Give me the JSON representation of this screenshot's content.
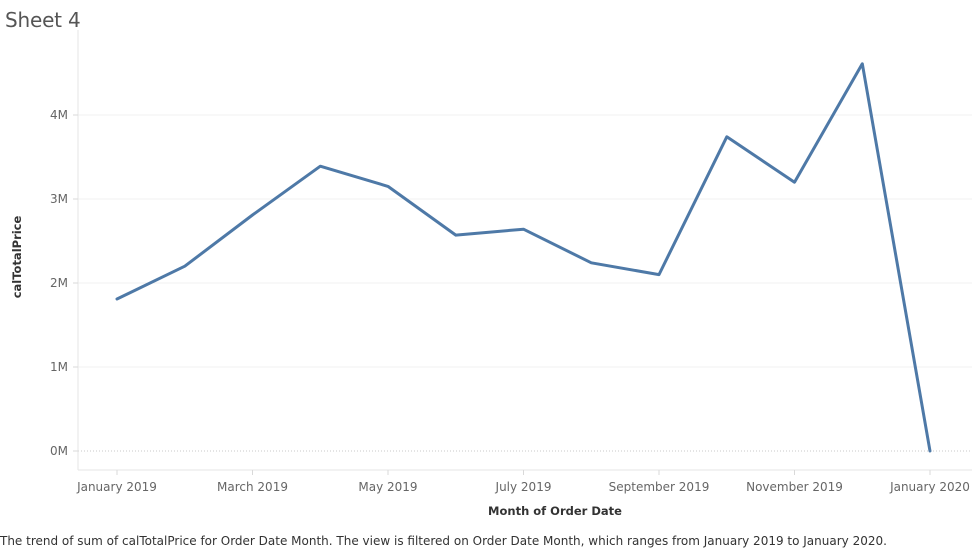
{
  "sheet": {
    "title": "Sheet 4",
    "caption": "The trend of sum of calTotalPrice for Order Date Month. The view is filtered on Order Date Month, which ranges from January 2019 to January 2020."
  },
  "chart_data": {
    "type": "line",
    "xlabel": "Month of Order Date",
    "ylabel": "calTotalPrice",
    "x": [
      "January 2019",
      "February 2019",
      "March 2019",
      "April 2019",
      "May 2019",
      "June 2019",
      "July 2019",
      "August 2019",
      "September 2019",
      "October 2019",
      "November 2019",
      "December 2019",
      "January 2020"
    ],
    "x_tick_labels": [
      "January 2019",
      "March 2019",
      "May 2019",
      "July 2019",
      "September 2019",
      "November 2019",
      "January 2020"
    ],
    "series": [
      {
        "values": [
          1810000,
          2200000,
          2810000,
          3390000,
          3150000,
          2570000,
          2640000,
          2240000,
          2100000,
          3740000,
          3200000,
          4610000,
          0
        ]
      }
    ],
    "y_ticks": [
      0,
      1000000,
      2000000,
      3000000,
      4000000
    ],
    "y_tick_labels": [
      "0M",
      "1M",
      "2M",
      "3M",
      "4M"
    ],
    "ylim": [
      0,
      4900000
    ],
    "grid": true,
    "line_color": "#4e79a7",
    "legend": "none"
  }
}
